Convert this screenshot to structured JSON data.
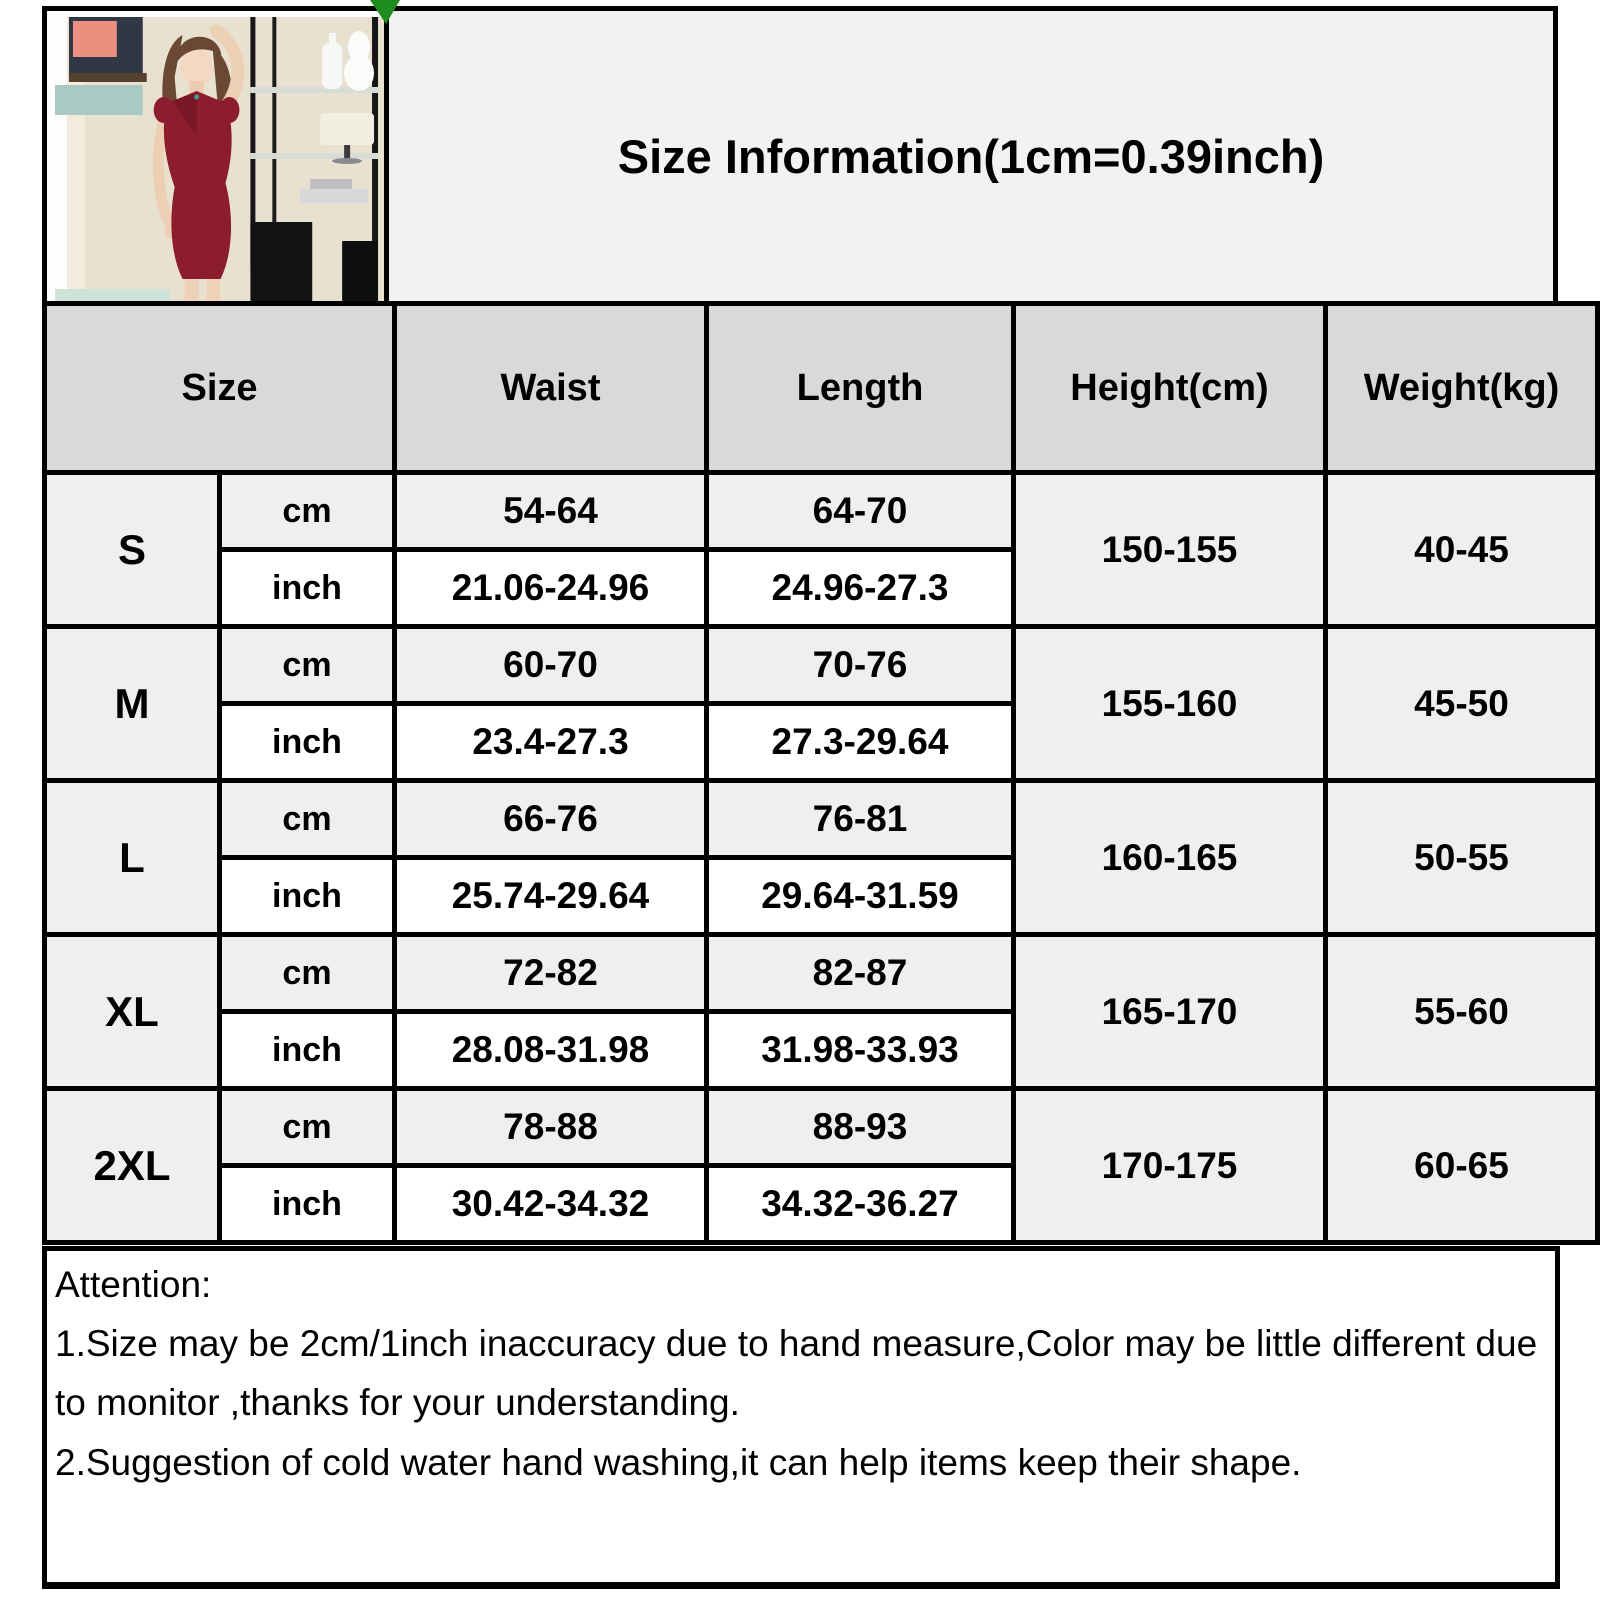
{
  "title": "Size Information(1cm=0.39inch)",
  "photo": {
    "description": "model wearing wine-red v-neck bodycon dress",
    "dress_color": "#8c1d2c"
  },
  "corner_marker_color": "#1f8c1f",
  "table": {
    "headers": [
      "Size",
      "Waist",
      "Length",
      "Height(cm)",
      "Weight(kg)"
    ],
    "unit_labels": {
      "cm": "cm",
      "inch": "inch"
    },
    "rows": [
      {
        "size": "S",
        "waist_cm": "54-64",
        "length_cm": "64-70",
        "waist_inch": "21.06-24.96",
        "length_inch": "24.96-27.3",
        "height": "150-155",
        "weight": "40-45"
      },
      {
        "size": "M",
        "waist_cm": "60-70",
        "length_cm": "70-76",
        "waist_inch": "23.4-27.3",
        "length_inch": "27.3-29.64",
        "height": "155-160",
        "weight": "45-50"
      },
      {
        "size": "L",
        "waist_cm": "66-76",
        "length_cm": "76-81",
        "waist_inch": "25.74-29.64",
        "length_inch": "29.64-31.59",
        "height": "160-165",
        "weight": "50-55"
      },
      {
        "size": "XL",
        "waist_cm": "72-82",
        "length_cm": "82-87",
        "waist_inch": "28.08-31.98",
        "length_inch": "31.98-33.93",
        "height": "165-170",
        "weight": "55-60"
      },
      {
        "size": "2XL",
        "waist_cm": "78-88",
        "length_cm": "88-93",
        "waist_inch": "30.42-34.32",
        "length_inch": "34.32-36.27",
        "height": "170-175",
        "weight": "60-65"
      }
    ]
  },
  "attention": {
    "heading": "Attention:",
    "line1": "1.Size may be 2cm/1inch inaccuracy due to hand measure,Color may be little different due to monitor ,thanks for your understanding.",
    "line2": "2.Suggestion of cold water hand washing,it can help items keep their shape."
  },
  "colors": {
    "header_bg": "#d9d9d9",
    "size_cell_bg": "#d9d9d9",
    "cm_row_bg": "#efefef",
    "inch_row_bg": "#ffffff",
    "merged_cell_bg": "#f2f2f2",
    "title_box_bg": "#f2f2f2",
    "border": "#000000"
  }
}
